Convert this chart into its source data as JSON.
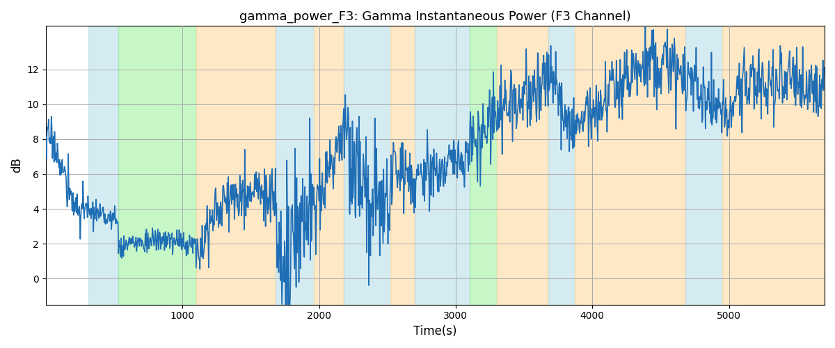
{
  "title": "gamma_power_F3: Gamma Instantaneous Power (F3 Channel)",
  "xlabel": "Time(s)",
  "ylabel": "dB",
  "xlim": [
    0,
    5700
  ],
  "ylim": [
    -1.5,
    14.5
  ],
  "line_color": "#1f6eb5",
  "line_width": 1.2,
  "background_color": "#ffffff",
  "grid_color": "#aaaaaa",
  "colored_bands": [
    {
      "xmin": 310,
      "xmax": 530,
      "color": "#add8e6",
      "alpha": 0.5
    },
    {
      "xmin": 530,
      "xmax": 1100,
      "color": "#90ee90",
      "alpha": 0.5
    },
    {
      "xmin": 1100,
      "xmax": 1680,
      "color": "#ffd9a0",
      "alpha": 0.6
    },
    {
      "xmin": 1680,
      "xmax": 1960,
      "color": "#add8e6",
      "alpha": 0.5
    },
    {
      "xmin": 1960,
      "xmax": 2180,
      "color": "#ffd9a0",
      "alpha": 0.6
    },
    {
      "xmin": 2180,
      "xmax": 2520,
      "color": "#add8e6",
      "alpha": 0.5
    },
    {
      "xmin": 2520,
      "xmax": 2700,
      "color": "#ffd9a0",
      "alpha": 0.6
    },
    {
      "xmin": 2700,
      "xmax": 3100,
      "color": "#add8e6",
      "alpha": 0.5
    },
    {
      "xmin": 3100,
      "xmax": 3300,
      "color": "#90ee90",
      "alpha": 0.5
    },
    {
      "xmin": 3300,
      "xmax": 3680,
      "color": "#ffd9a0",
      "alpha": 0.6
    },
    {
      "xmin": 3680,
      "xmax": 3870,
      "color": "#add8e6",
      "alpha": 0.5
    },
    {
      "xmin": 3870,
      "xmax": 4680,
      "color": "#ffd9a0",
      "alpha": 0.6
    },
    {
      "xmin": 4680,
      "xmax": 4950,
      "color": "#add8e6",
      "alpha": 0.5
    },
    {
      "xmin": 4950,
      "xmax": 5700,
      "color": "#ffd9a0",
      "alpha": 0.6
    }
  ],
  "xticks": [
    1000,
    2000,
    3000,
    4000,
    5000
  ],
  "yticks": [
    0,
    2,
    4,
    6,
    8,
    10,
    12
  ],
  "seed": 17
}
